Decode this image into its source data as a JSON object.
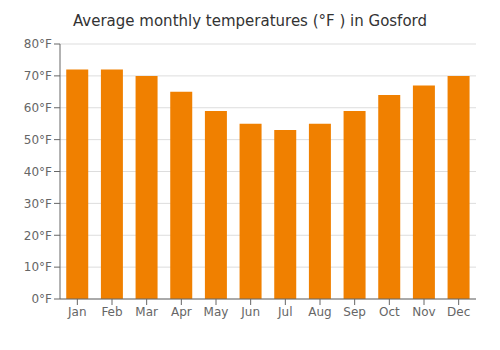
{
  "chart_data": {
    "type": "bar",
    "title": "Average monthly temperatures (°F ) in Gosford",
    "categories": [
      "Jan",
      "Feb",
      "Mar",
      "Apr",
      "May",
      "Jun",
      "Jul",
      "Aug",
      "Sep",
      "Oct",
      "Nov",
      "Dec"
    ],
    "values": [
      72,
      72,
      70,
      65,
      59,
      55,
      53,
      55,
      59,
      64,
      67,
      70
    ],
    "color": "#F08000",
    "ylim": [
      0,
      80
    ],
    "yticks": [
      {
        "value": 0,
        "label": "0°F"
      },
      {
        "value": 10,
        "label": "10°F"
      },
      {
        "value": 20,
        "label": "20°F"
      },
      {
        "value": 30,
        "label": "30°F"
      },
      {
        "value": 40,
        "label": "40°F"
      },
      {
        "value": 50,
        "label": "50°F"
      },
      {
        "value": 60,
        "label": "60°F"
      },
      {
        "value": 70,
        "label": "70°F"
      },
      {
        "value": 80,
        "label": "80°F"
      }
    ],
    "grid": true
  }
}
